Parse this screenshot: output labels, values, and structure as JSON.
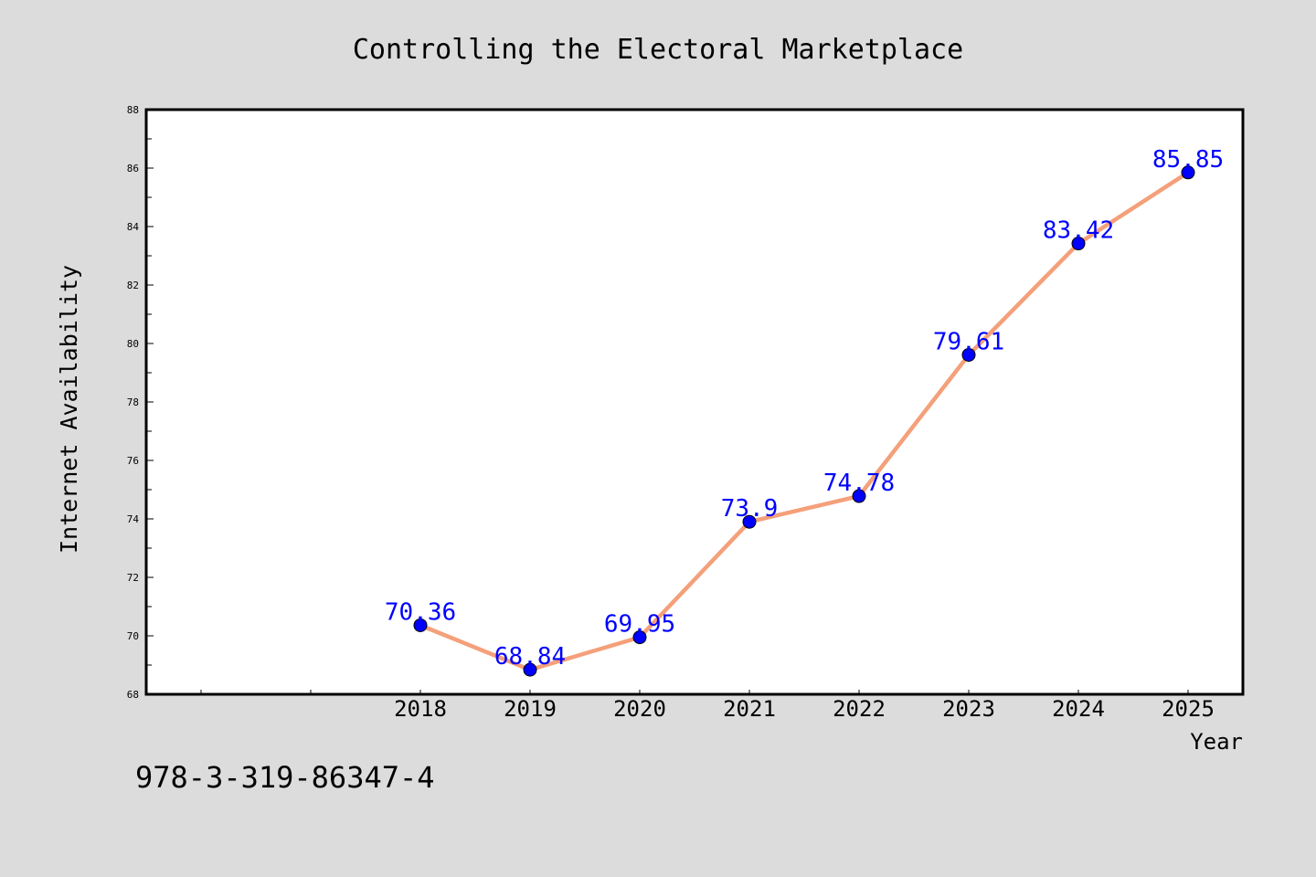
{
  "chart_data": {
    "type": "line",
    "title": "Controlling the Electoral Marketplace",
    "xlabel": "Year",
    "ylabel": "Internet Availability",
    "categories": [
      "2018",
      "2019",
      "2020",
      "2021",
      "2022",
      "2023",
      "2024",
      "2025"
    ],
    "series": [
      {
        "values": [
          70.36,
          68.84,
          69.95,
          73.9,
          74.78,
          79.61,
          83.42,
          85.85
        ],
        "line_color": "#f4a07a",
        "marker_color": "#0000ff"
      }
    ],
    "data_labels": [
      "70.36",
      "68.84",
      "69.95",
      "73.9",
      "74.78",
      "79.61",
      "83.42",
      "85.85"
    ],
    "ylim": [
      68,
      88
    ],
    "yticks": [
      "68",
      "70",
      "72",
      "74",
      "76",
      "78",
      "80",
      "82",
      "84",
      "86",
      "88"
    ],
    "grid": false,
    "data_label_color": "#0000ff"
  },
  "caption": "978-3-319-86347-4",
  "colors": {
    "background": "#dcdcdc",
    "plot_background": "#ffffff"
  }
}
